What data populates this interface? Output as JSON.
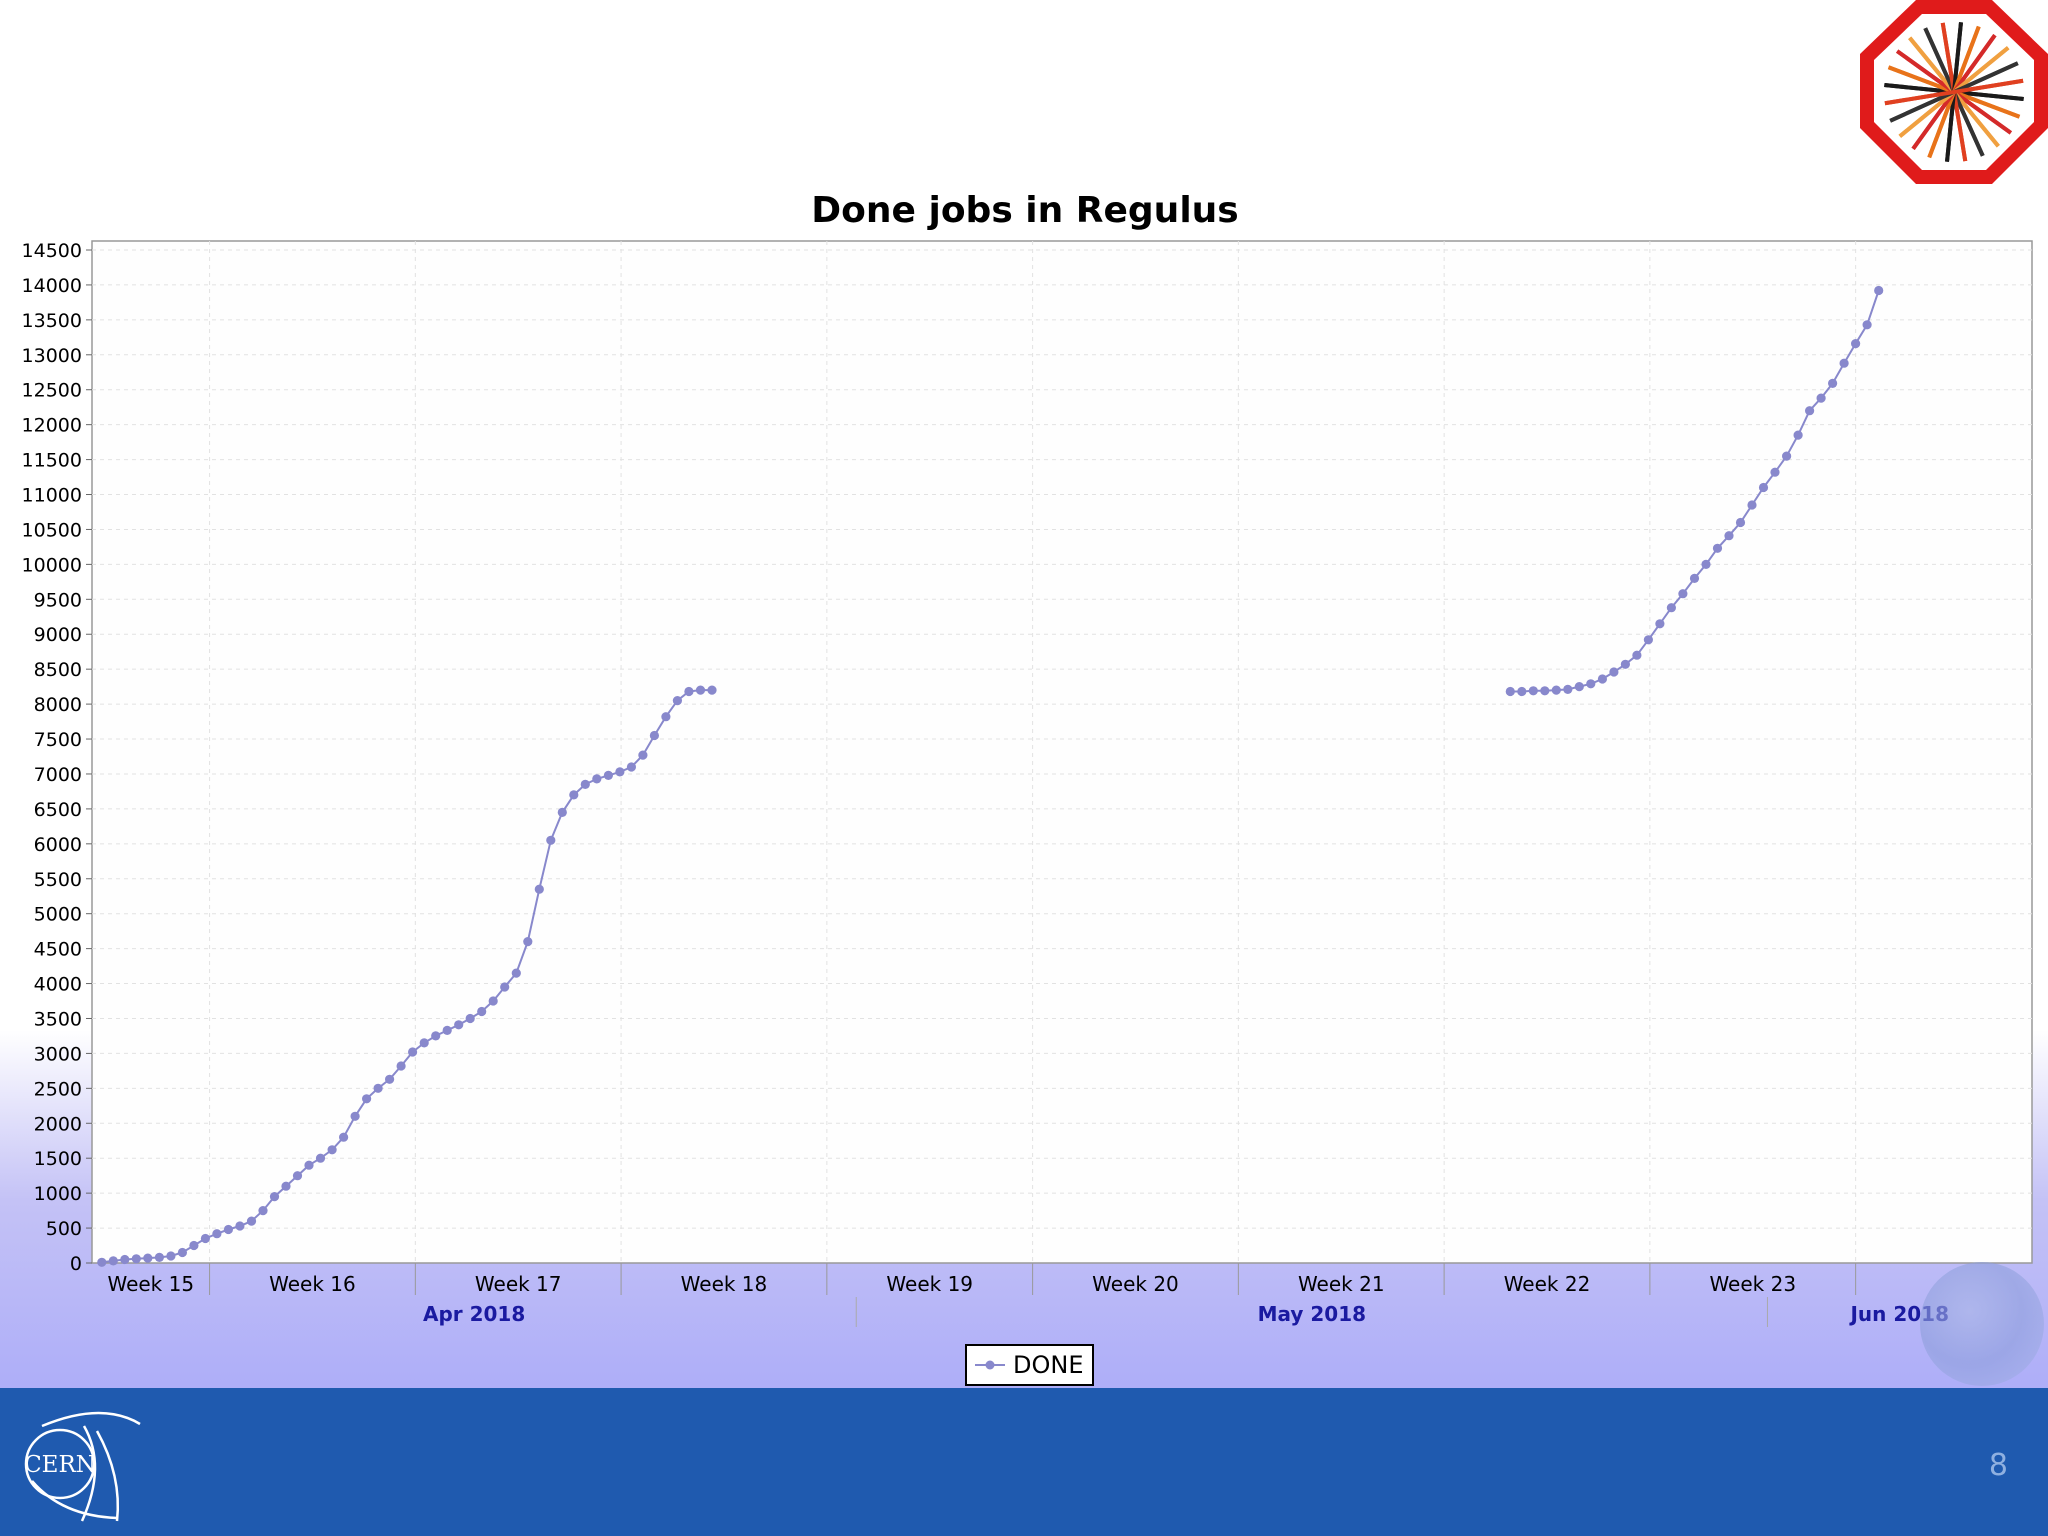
{
  "slide": {
    "page_number": "8"
  },
  "logos": {
    "cern_text": "CERN"
  },
  "chart_data": {
    "type": "line",
    "title": "Done jobs in Regulus",
    "xlabel": "",
    "ylabel": "",
    "ylim": [
      0,
      14500
    ],
    "yticks": [
      0,
      500,
      1000,
      1500,
      2000,
      2500,
      3000,
      3500,
      4000,
      4500,
      5000,
      5500,
      6000,
      6500,
      7000,
      7500,
      8000,
      8500,
      9000,
      9500,
      10000,
      10500,
      11000,
      11500,
      12000,
      12500,
      13000,
      13500,
      14000,
      14500
    ],
    "ytick_labels": [
      "0",
      "500",
      "1000",
      "1500",
      "2000",
      "2500",
      "3000",
      "3500",
      "4000",
      "4500",
      "5000",
      "5500",
      "6000",
      "6500",
      "7000",
      "7500",
      "8000",
      "8500",
      "9000",
      "9500",
      "10000",
      "10500",
      "11000",
      "11500",
      "12000",
      "12500",
      "13000",
      "13500",
      "14000",
      "14500"
    ],
    "x_unit": "day",
    "x_range": [
      "2018-04-05",
      "2018-06-10"
    ],
    "week_labels": [
      {
        "label": "Week 15",
        "start": "2018-04-05",
        "end": "2018-04-09"
      },
      {
        "label": "Week 16",
        "start": "2018-04-09",
        "end": "2018-04-16"
      },
      {
        "label": "Week 17",
        "start": "2018-04-16",
        "end": "2018-04-23"
      },
      {
        "label": "Week 18",
        "start": "2018-04-23",
        "end": "2018-04-30"
      },
      {
        "label": "Week 19",
        "start": "2018-04-30",
        "end": "2018-05-07"
      },
      {
        "label": "Week 20",
        "start": "2018-05-07",
        "end": "2018-05-14"
      },
      {
        "label": "Week 21",
        "start": "2018-05-14",
        "end": "2018-05-21"
      },
      {
        "label": "Week 22",
        "start": "2018-05-21",
        "end": "2018-05-28"
      },
      {
        "label": "Week 23",
        "start": "2018-05-28",
        "end": "2018-06-04"
      }
    ],
    "month_labels": [
      {
        "label": "Apr 2018",
        "start": "2018-04-05",
        "end": "2018-05-01"
      },
      {
        "label": "May 2018",
        "start": "2018-05-01",
        "end": "2018-06-01"
      },
      {
        "label": "Jun 2018",
        "start": "2018-06-01",
        "end": "2018-06-10"
      }
    ],
    "grid": true,
    "legend": "bottom-center",
    "series": [
      {
        "name": "DONE",
        "color": "#8888cc",
        "segments": [
          {
            "start": "2018-04-05 08:00",
            "step_hours": 9.4,
            "values": [
              10,
              30,
              50,
              60,
              70,
              80,
              100,
              150,
              250,
              350,
              420,
              480,
              530,
              600,
              750,
              950,
              1100,
              1250,
              1400,
              1500,
              1620,
              1800,
              2100,
              2350,
              2500,
              2630,
              2820,
              3020,
              3150,
              3250,
              3330,
              3410,
              3500,
              3600,
              3750,
              3950,
              4150,
              4600,
              5350,
              6050,
              6450,
              6700,
              6850,
              6930,
              6980,
              7030,
              7100,
              7270,
              7550,
              7820,
              8050,
              8180,
              8200,
              8200
            ]
          },
          {
            "start": "2018-05-23 06:00",
            "step_hours": 9.4,
            "values": [
              8180,
              8180,
              8190,
              8190,
              8200,
              8210,
              8250,
              8290,
              8360,
              8460,
              8570,
              8700,
              8920,
              9150,
              9380,
              9580,
              9800,
              10000,
              10230,
              10410,
              10600,
              10850,
              11100,
              11320,
              11550,
              11850,
              12200,
              12380,
              12590,
              12880,
              13160,
              13430,
              13920
            ]
          }
        ]
      }
    ]
  }
}
